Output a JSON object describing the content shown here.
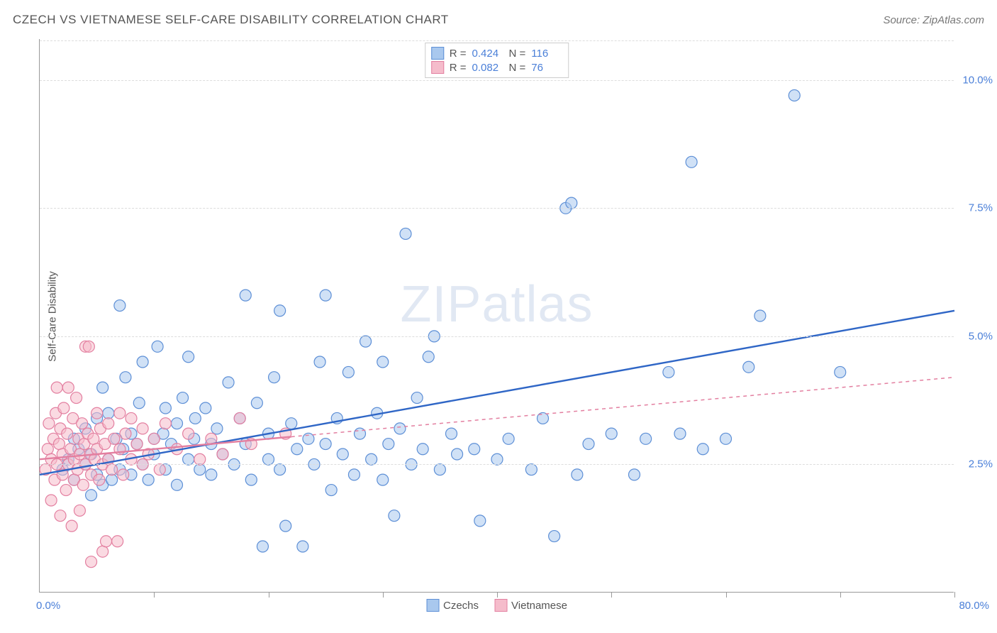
{
  "title": "CZECH VS VIETNAMESE SELF-CARE DISABILITY CORRELATION CHART",
  "source_label": "Source: ZipAtlas.com",
  "y_axis_label": "Self-Care Disability",
  "watermark": {
    "part1": "ZIP",
    "part2": "atlas"
  },
  "chart": {
    "type": "scatter",
    "xlim": [
      0,
      80
    ],
    "ylim": [
      0,
      10.8
    ],
    "x_origin_label": "0.0%",
    "x_max_label": "80.0%",
    "y_ticks": [
      {
        "v": 2.5,
        "label": "2.5%"
      },
      {
        "v": 5.0,
        "label": "5.0%"
      },
      {
        "v": 7.5,
        "label": "7.5%"
      },
      {
        "v": 10.0,
        "label": "10.0%"
      }
    ],
    "x_tick_positions": [
      10,
      20,
      30,
      40,
      50,
      60,
      70,
      80
    ],
    "background_color": "#ffffff",
    "grid_color": "#dddddd",
    "marker_radius": 8,
    "marker_stroke_width": 1.2,
    "trend_line_width": 2.4,
    "series": [
      {
        "name": "Czechs",
        "fill": "#a9c8ee",
        "stroke": "#5d8fd6",
        "fill_opacity": 0.55,
        "line_color": "#2f66c6",
        "line_dash": "",
        "R": "0.424",
        "N": "116",
        "trend": {
          "x0": 0,
          "y0": 2.3,
          "x1": 80,
          "y1": 5.5
        },
        "extrap_from_x": null,
        "points": [
          [
            2,
            2.4
          ],
          [
            2.5,
            2.6
          ],
          [
            3,
            2.2
          ],
          [
            3,
            3.0
          ],
          [
            3.4,
            2.8
          ],
          [
            4,
            2.5
          ],
          [
            4,
            3.2
          ],
          [
            4.5,
            2.7
          ],
          [
            4.5,
            1.9
          ],
          [
            5,
            2.3
          ],
          [
            5,
            3.4
          ],
          [
            5.5,
            2.1
          ],
          [
            5.5,
            4.0
          ],
          [
            6,
            2.6
          ],
          [
            6,
            3.5
          ],
          [
            6.3,
            2.2
          ],
          [
            6.7,
            3.0
          ],
          [
            7,
            2.4
          ],
          [
            7,
            5.6
          ],
          [
            7.3,
            2.8
          ],
          [
            7.5,
            4.2
          ],
          [
            8,
            3.1
          ],
          [
            8,
            2.3
          ],
          [
            8.5,
            2.9
          ],
          [
            8.7,
            3.7
          ],
          [
            9,
            2.5
          ],
          [
            9,
            4.5
          ],
          [
            9.5,
            2.2
          ],
          [
            10,
            3.0
          ],
          [
            10,
            2.7
          ],
          [
            10.3,
            4.8
          ],
          [
            10.8,
            3.1
          ],
          [
            11,
            2.4
          ],
          [
            11,
            3.6
          ],
          [
            11.5,
            2.9
          ],
          [
            12,
            3.3
          ],
          [
            12,
            2.1
          ],
          [
            12.5,
            3.8
          ],
          [
            13,
            2.6
          ],
          [
            13,
            4.6
          ],
          [
            13.5,
            3.0
          ],
          [
            13.6,
            3.4
          ],
          [
            14,
            2.4
          ],
          [
            14.5,
            3.6
          ],
          [
            15,
            2.9
          ],
          [
            15,
            2.3
          ],
          [
            15.5,
            3.2
          ],
          [
            16,
            2.7
          ],
          [
            16.5,
            4.1
          ],
          [
            17,
            2.5
          ],
          [
            17.5,
            3.4
          ],
          [
            18,
            2.9
          ],
          [
            18,
            5.8
          ],
          [
            18.5,
            2.2
          ],
          [
            19,
            3.7
          ],
          [
            19.5,
            0.9
          ],
          [
            20,
            2.6
          ],
          [
            20,
            3.1
          ],
          [
            20.5,
            4.2
          ],
          [
            21,
            2.4
          ],
          [
            21,
            5.5
          ],
          [
            21.5,
            1.3
          ],
          [
            22,
            3.3
          ],
          [
            22.5,
            2.8
          ],
          [
            23,
            0.9
          ],
          [
            23.5,
            3.0
          ],
          [
            24,
            2.5
          ],
          [
            24.5,
            4.5
          ],
          [
            25,
            2.9
          ],
          [
            25,
            5.8
          ],
          [
            25.5,
            2.0
          ],
          [
            26,
            3.4
          ],
          [
            26.5,
            2.7
          ],
          [
            27,
            4.3
          ],
          [
            27.5,
            2.3
          ],
          [
            28,
            3.1
          ],
          [
            28.5,
            4.9
          ],
          [
            29,
            2.6
          ],
          [
            29.5,
            3.5
          ],
          [
            30,
            2.2
          ],
          [
            30,
            4.5
          ],
          [
            30.5,
            2.9
          ],
          [
            31,
            1.5
          ],
          [
            31.5,
            3.2
          ],
          [
            32,
            7.0
          ],
          [
            32.5,
            2.5
          ],
          [
            33,
            3.8
          ],
          [
            33.5,
            2.8
          ],
          [
            34,
            4.6
          ],
          [
            34.5,
            5.0
          ],
          [
            35,
            2.4
          ],
          [
            36,
            3.1
          ],
          [
            36.5,
            2.7
          ],
          [
            38,
            2.8
          ],
          [
            38.5,
            1.4
          ],
          [
            40,
            2.6
          ],
          [
            41,
            3.0
          ],
          [
            43,
            2.4
          ],
          [
            44,
            3.4
          ],
          [
            45,
            1.1
          ],
          [
            46,
            7.5
          ],
          [
            46.5,
            7.6
          ],
          [
            47,
            2.3
          ],
          [
            48,
            2.9
          ],
          [
            50,
            3.1
          ],
          [
            52,
            2.3
          ],
          [
            53,
            3.0
          ],
          [
            55,
            4.3
          ],
          [
            56,
            3.1
          ],
          [
            57,
            8.4
          ],
          [
            58,
            2.8
          ],
          [
            60,
            3.0
          ],
          [
            62,
            4.4
          ],
          [
            63,
            5.4
          ],
          [
            66,
            9.7
          ],
          [
            70,
            4.3
          ]
        ]
      },
      {
        "name": "Vietnamese",
        "fill": "#f5bccb",
        "stroke": "#e37fa0",
        "fill_opacity": 0.55,
        "line_color": "#e37fa0",
        "line_dash": "5,5",
        "R": "0.082",
        "N": "76",
        "trend": {
          "x0": 0,
          "y0": 2.6,
          "x1": 80,
          "y1": 4.2
        },
        "extrap_from_x": 22,
        "points": [
          [
            0.5,
            2.4
          ],
          [
            0.7,
            2.8
          ],
          [
            0.8,
            3.3
          ],
          [
            1.0,
            1.8
          ],
          [
            1.0,
            2.6
          ],
          [
            1.2,
            3.0
          ],
          [
            1.3,
            2.2
          ],
          [
            1.4,
            3.5
          ],
          [
            1.5,
            2.5
          ],
          [
            1.5,
            4.0
          ],
          [
            1.7,
            2.9
          ],
          [
            1.8,
            1.5
          ],
          [
            1.8,
            3.2
          ],
          [
            2.0,
            2.3
          ],
          [
            2.0,
            2.7
          ],
          [
            2.1,
            3.6
          ],
          [
            2.3,
            2.0
          ],
          [
            2.4,
            3.1
          ],
          [
            2.5,
            2.5
          ],
          [
            2.5,
            4.0
          ],
          [
            2.7,
            2.8
          ],
          [
            2.8,
            1.3
          ],
          [
            2.9,
            3.4
          ],
          [
            3.0,
            2.2
          ],
          [
            3.0,
            2.6
          ],
          [
            3.2,
            3.8
          ],
          [
            3.3,
            2.4
          ],
          [
            3.4,
            3.0
          ],
          [
            3.5,
            2.7
          ],
          [
            3.5,
            1.6
          ],
          [
            3.7,
            3.3
          ],
          [
            3.8,
            2.1
          ],
          [
            3.9,
            2.9
          ],
          [
            4.0,
            2.5
          ],
          [
            4.0,
            4.8
          ],
          [
            4.2,
            3.1
          ],
          [
            4.3,
            4.8
          ],
          [
            4.4,
            2.7
          ],
          [
            4.5,
            2.3
          ],
          [
            4.5,
            0.6
          ],
          [
            4.7,
            3.0
          ],
          [
            4.8,
            2.6
          ],
          [
            5.0,
            2.8
          ],
          [
            5.0,
            3.5
          ],
          [
            5.2,
            2.2
          ],
          [
            5.3,
            3.2
          ],
          [
            5.5,
            2.5
          ],
          [
            5.5,
            0.8
          ],
          [
            5.7,
            2.9
          ],
          [
            5.8,
            1.0
          ],
          [
            6.0,
            2.6
          ],
          [
            6.0,
            3.3
          ],
          [
            6.3,
            2.4
          ],
          [
            6.5,
            3.0
          ],
          [
            6.8,
            1.0
          ],
          [
            7.0,
            2.8
          ],
          [
            7.0,
            3.5
          ],
          [
            7.3,
            2.3
          ],
          [
            7.5,
            3.1
          ],
          [
            8.0,
            2.6
          ],
          [
            8.0,
            3.4
          ],
          [
            8.5,
            2.9
          ],
          [
            9.0,
            2.5
          ],
          [
            9.0,
            3.2
          ],
          [
            9.5,
            2.7
          ],
          [
            10.0,
            3.0
          ],
          [
            10.5,
            2.4
          ],
          [
            11.0,
            3.3
          ],
          [
            12.0,
            2.8
          ],
          [
            13.0,
            3.1
          ],
          [
            14.0,
            2.6
          ],
          [
            15.0,
            3.0
          ],
          [
            16.0,
            2.7
          ],
          [
            17.5,
            3.4
          ],
          [
            18.5,
            2.9
          ],
          [
            21.5,
            3.1
          ]
        ]
      }
    ]
  }
}
